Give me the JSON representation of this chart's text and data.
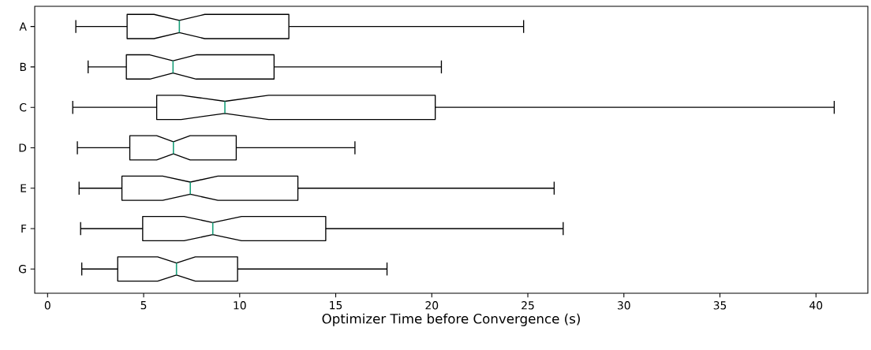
{
  "chart_data": {
    "type": "box",
    "orientation": "horizontal",
    "categories": [
      "A",
      "B",
      "C",
      "D",
      "E",
      "F",
      "G"
    ],
    "boxes": [
      {
        "low": 1.47,
        "q1": 4.14,
        "median": 6.86,
        "q3": 12.56,
        "high": 24.78
      },
      {
        "low": 2.11,
        "q1": 4.1,
        "median": 6.53,
        "q3": 11.79,
        "high": 20.5
      },
      {
        "low": 1.31,
        "q1": 5.68,
        "median": 9.23,
        "q3": 20.18,
        "high": 40.95
      },
      {
        "low": 1.55,
        "q1": 4.28,
        "median": 6.55,
        "q3": 9.82,
        "high": 16.0
      },
      {
        "low": 1.64,
        "q1": 3.87,
        "median": 7.43,
        "q3": 13.03,
        "high": 26.37
      },
      {
        "low": 1.72,
        "q1": 4.95,
        "median": 8.6,
        "q3": 14.48,
        "high": 26.84
      },
      {
        "low": 1.78,
        "q1": 3.65,
        "median": 6.71,
        "q3": 9.89,
        "high": 17.67
      }
    ],
    "xlabel": "Optimizer Time before Convergence (s)",
    "xlim": [
      -0.67,
      42.7
    ],
    "xticks": [
      0,
      5,
      10,
      15,
      20,
      25,
      30,
      35,
      40
    ]
  }
}
